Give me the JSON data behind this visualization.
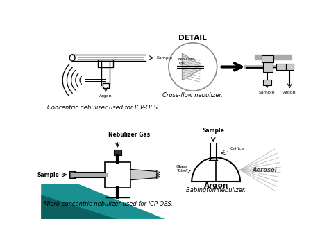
{
  "slide_bg": "#ffffff",
  "teal_color1": "#1a8f8f",
  "teal_color2": "#0d5f5f",
  "captions": {
    "top_left": "Concentric nebulizer used for ICP-OES.",
    "top_right": "Cross-flow nebulizer.",
    "bottom_left": "Micro-concentric nebulizer used for ICP-OES.",
    "bottom_right": "Babington nebulizer."
  },
  "labels": {
    "detail": "DETAIL",
    "nebulizer_tips": "Nebulizer\nTips",
    "sample_tr": "Sample",
    "argon_tr": "Argon",
    "nebulizer_gas": "Nebulizer Gas",
    "sample_bl": "Sample",
    "sample_br": "Sample",
    "orifice": "Orifice",
    "aerosol": "Aerosol",
    "glass_tube": "Glass\nTube",
    "argon_br": "Argon",
    "argon_tl": "Argon",
    "sample_tl": "Sample"
  },
  "caption_fontsize": 6.0,
  "label_fontsize": 5.0,
  "detail_fontsize": 7.5
}
